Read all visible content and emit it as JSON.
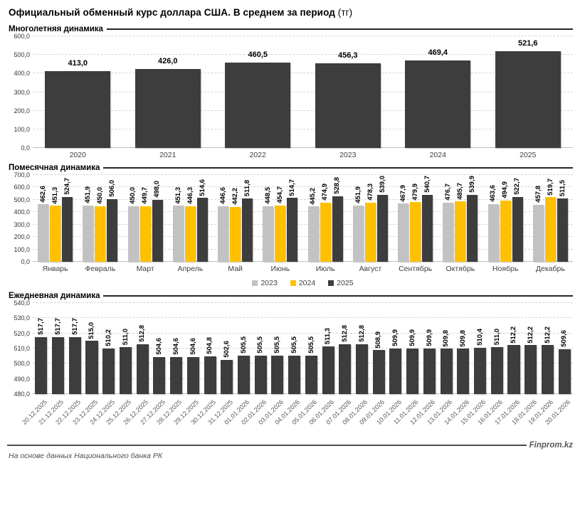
{
  "title": {
    "main": "Официальный обменный курс доллара США. В среднем за период",
    "unit": "(тг)"
  },
  "sections": {
    "yearly_header": "Многолетняя динамика",
    "monthly_header": "Помесячная динамика",
    "daily_header": "Ежедневная динамика"
  },
  "footer": {
    "brand": "Finprom.kz",
    "source": "На основе данных Национального банка РК"
  },
  "colors": {
    "bar_dark": "#3d3d3d",
    "bar_gray": "#c2c2c2",
    "bar_yellow": "#ffc000"
  },
  "chart_data": [
    {
      "id": "yearly",
      "type": "bar",
      "title": "Многолетняя динамика",
      "categories": [
        "2020",
        "2021",
        "2022",
        "2023",
        "2024",
        "2025"
      ],
      "values": [
        413.0,
        426.0,
        460.5,
        456.3,
        469.4,
        521.6
      ],
      "data_labels": [
        "413,0",
        "426,0",
        "460,5",
        "456,3",
        "469,4",
        "521,6"
      ],
      "ylim": [
        0,
        600
      ],
      "ytick_step": 100,
      "grid": true,
      "bar_color_key": "bar_dark",
      "legend_position": "none"
    },
    {
      "id": "monthly",
      "type": "bar",
      "title": "Помесячная динамика",
      "categories": [
        "Январь",
        "Февраль",
        "Март",
        "Апрель",
        "Май",
        "Июнь",
        "Июль",
        "Август",
        "Сентябрь",
        "Октябрь",
        "Ноябрь",
        "Декабрь"
      ],
      "series": [
        {
          "name": "2023",
          "color_key": "bar_gray",
          "values": [
            462.6,
            451.9,
            450.0,
            451.3,
            446.6,
            448.5,
            445.2,
            451.9,
            467.9,
            476.7,
            463.6,
            457.8
          ]
        },
        {
          "name": "2024",
          "color_key": "bar_yellow",
          "values": [
            451.3,
            450.0,
            449.7,
            446.3,
            442.2,
            454.7,
            474.9,
            478.3,
            479.9,
            485.7,
            494.9,
            519.7
          ]
        },
        {
          "name": "2025",
          "color_key": "bar_dark",
          "values": [
            524.7,
            506.0,
            498.0,
            514.6,
            511.8,
            514.7,
            528.8,
            539.0,
            540.7,
            539.9,
            522.7,
            511.5
          ]
        }
      ],
      "ylim": [
        0,
        700
      ],
      "ytick_step": 100,
      "grid": true,
      "legend": [
        "2023",
        "2024",
        "2025"
      ],
      "legend_position": "bottom"
    },
    {
      "id": "daily",
      "type": "bar",
      "title": "Ежедневная динамика",
      "categories": [
        "20.12.2025",
        "21.12.2025",
        "22.12.2025",
        "23.12.2025",
        "24.12.2025",
        "25.12.2025",
        "26.12.2025",
        "27.12.2025",
        "28.12.2025",
        "29.12.2025",
        "30.12.2025",
        "31.12.2025",
        "01.01.2026",
        "02.01.2026",
        "03.01.2026",
        "04.01.2026",
        "05.01.2026",
        "06.01.2026",
        "07.01.2026",
        "08.01.2026",
        "09.01.2026",
        "10.01.2026",
        "11.01.2026",
        "12.01.2026",
        "13.01.2026",
        "14.01.2026",
        "15.01.2026",
        "16.01.2026",
        "17.01.2026",
        "18.01.2026",
        "19.01.2026",
        "20.01.2026"
      ],
      "values": [
        517.7,
        517.7,
        517.7,
        515.0,
        510.2,
        511.0,
        512.8,
        504.6,
        504.6,
        504.6,
        504.8,
        502.6,
        505.5,
        505.5,
        505.5,
        505.5,
        505.5,
        511.3,
        512.8,
        512.8,
        508.9,
        509.9,
        509.9,
        509.9,
        509.8,
        509.8,
        510.4,
        511.0,
        512.2,
        512.2,
        512.2,
        509.6
      ],
      "ylim": [
        480,
        540
      ],
      "ytick_step": 10,
      "grid": true,
      "bar_color_key": "bar_dark",
      "legend_position": "none"
    }
  ]
}
